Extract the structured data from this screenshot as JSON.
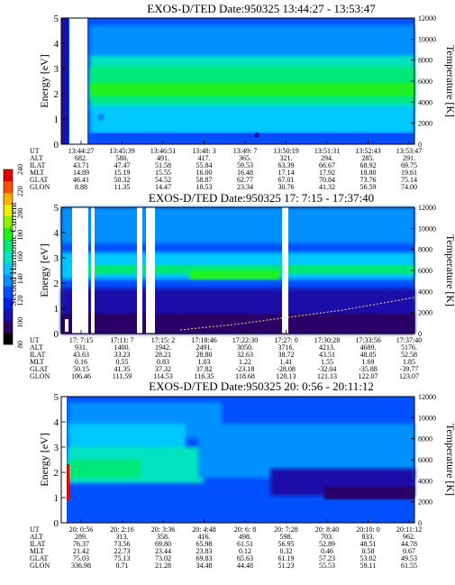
{
  "palette": [
    "#000000",
    "#2a0066",
    "#1a10a8",
    "#0022e0",
    "#0050ff",
    "#0090ff",
    "#00c8ff",
    "#00e4c0",
    "#00e878",
    "#20f020",
    "#90f000",
    "#e8f000",
    "#ffb000",
    "#ff5000",
    "#e00000"
  ],
  "colorbar": {
    "label": "Second Harmonic Current",
    "ticks": [
      "80",
      "100",
      "120",
      "140",
      "160",
      "180",
      "200",
      "220",
      "240"
    ]
  },
  "chart_data": [
    {
      "type": "heatmap",
      "title": "EXOS-D/TED   Date:950325  13:44:27 - 13:53:47",
      "ylabel": "Energy [eV]",
      "y2label": "Temperature [K]",
      "ylim": [
        0,
        5
      ],
      "y2lim": [
        0,
        12000
      ],
      "yticks": [
        "0",
        "1",
        "2",
        "3",
        "4",
        "5"
      ],
      "y2ticks": [
        "0",
        "2000",
        "4000",
        "6000",
        "8000",
        "10000",
        "12000"
      ],
      "row_labels": [
        "UT",
        "ALT",
        "ILAT",
        "MLT",
        "GLAT",
        "GLON"
      ],
      "columns": [
        [
          "13:44:27",
          "682.",
          "43.71",
          "14.89",
          "46.41",
          "8.88"
        ],
        [
          "13:45:39",
          "580.",
          "47.47",
          "15.19",
          "50.32",
          "11.35"
        ],
        [
          "13:46:51",
          "491.",
          "51.58",
          "15.55",
          "54.52",
          "14.47"
        ],
        [
          "13:48: 3",
          "417.",
          "55.84",
          "16.00",
          "58.87",
          "18.53"
        ],
        [
          "13:49: 7",
          "365.",
          "59.53",
          "16.48",
          "62.77",
          "23.34"
        ],
        [
          "13:50:19",
          "321.",
          "63.39",
          "17.14",
          "67.01",
          "30.76"
        ],
        [
          "13:51:31",
          "294.",
          "66.67",
          "17.92",
          "70.84",
          "41.32"
        ],
        [
          "13:52:43",
          "285.",
          "68.92",
          "18.80",
          "73.76",
          "56.59"
        ],
        [
          "13:53:47",
          "291.",
          "69.75",
          "19.61",
          "75.14",
          "74.00"
        ]
      ]
    },
    {
      "type": "heatmap",
      "title": "EXOS-D/TED   Date:950325  17: 7:15 - 17:37:40",
      "ylabel": "Energy [eV]",
      "y2label": "Temperature [K]",
      "ylim": [
        0,
        5
      ],
      "y2lim": [
        0,
        12000
      ],
      "yticks": [
        "0",
        "1",
        "2",
        "3",
        "4",
        "5"
      ],
      "y2ticks": [
        "0",
        "2000",
        "4000",
        "6000",
        "8000",
        "10000",
        "12000"
      ],
      "row_labels": [
        "UT",
        "ALT",
        "ILAT",
        "MLT",
        "GLAT",
        "GLON"
      ],
      "columns": [
        [
          "17: 7:15",
          "931.",
          "43.63",
          "0.16",
          "50.15",
          "106.46"
        ],
        [
          "17:11: 7",
          "1400.",
          "33.23",
          "0.55",
          "41.35",
          "111.59"
        ],
        [
          "17:15: 2",
          "1942.",
          "28.21",
          "0.83",
          "37.32",
          "114.53"
        ],
        [
          "17:18:46",
          "2491.",
          "28.80",
          "1.03",
          "37.82",
          "116.35"
        ],
        [
          "17:22:30",
          "3050.",
          "32.63",
          "1.22",
          "-23.18",
          "118.68"
        ],
        [
          "17:27: 0",
          "3716.",
          "38.72",
          "1.41",
          "-28.08",
          "120.13"
        ],
        [
          "17:30:28",
          "4213.",
          "43.51",
          "1.55",
          "-32.04",
          "121.13"
        ],
        [
          "17:33:56",
          "4689.",
          "48.05",
          "1.69",
          "-35.88",
          "122.07"
        ],
        [
          "17:37:40",
          "5176.",
          "52.58",
          "1.85",
          "-39.77",
          "123.07"
        ]
      ]
    },
    {
      "type": "heatmap",
      "title": "EXOS-D/TED   Date:950325  20: 0:56 - 20:11:12",
      "ylabel": "Energy [eV]",
      "y2label": "Temperature [K]",
      "ylim": [
        0,
        5
      ],
      "y2lim": [
        0,
        12000
      ],
      "yticks": [
        "0",
        "1",
        "2",
        "3",
        "4",
        "5"
      ],
      "y2ticks": [
        "0",
        "2000",
        "4000",
        "6000",
        "8000",
        "10000",
        "12000"
      ],
      "row_labels": [
        "UT",
        "ALT",
        "ILAT",
        "MLT",
        "GLAT",
        "GLON"
      ],
      "columns": [
        [
          "20: 0:56",
          "289.",
          "76.37",
          "21.42",
          "75.03",
          "336.98"
        ],
        [
          "20: 2:16",
          "313.",
          "73.56",
          "22.73",
          "75.13",
          "0.71"
        ],
        [
          "20: 3:36",
          "358.",
          "69.80",
          "23.44",
          "73.02",
          "21.28"
        ],
        [
          "20: 4:48",
          "416.",
          "65.98",
          "23.83",
          "69.83",
          "34.48"
        ],
        [
          "20: 6: 8",
          "498.",
          "61.51",
          "0.12",
          "65.63",
          "44.48"
        ],
        [
          "20: 7:28",
          "598.",
          "56.95",
          "0.32",
          "61.19",
          "51.23"
        ],
        [
          "20: 8:40",
          "703.",
          "52.89",
          "0.46",
          "57.23",
          "55.53"
        ],
        [
          "20:10: 0",
          "833.",
          "48.51",
          "0.58",
          "53.02",
          "59.11"
        ],
        [
          "20:11:12",
          "962.",
          "44.78",
          "0.67",
          "49.53",
          "61.55"
        ]
      ]
    }
  ]
}
